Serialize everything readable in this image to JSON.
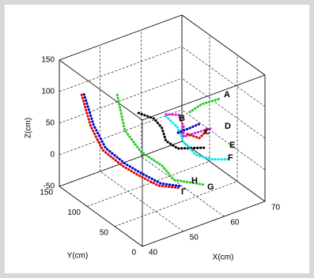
{
  "chart_data": {
    "type": "line3d",
    "xlabel": "X(cm)",
    "ylabel": "Y(cm)",
    "zlabel": "Z(cm)",
    "xlim": [
      40,
      70
    ],
    "ylim": [
      0,
      150
    ],
    "zlim": [
      -50,
      150
    ],
    "xticks": [
      40,
      50,
      60,
      70
    ],
    "yticks": [
      0,
      50,
      100,
      150
    ],
    "zticks": [
      -50,
      0,
      50,
      100,
      150
    ],
    "grid": true,
    "annotations": [
      "A",
      "B",
      "C",
      "D",
      "E",
      "F",
      "G",
      "H",
      "Γ"
    ],
    "series": [
      {
        "color": "#dd0000",
        "x": [
          41.4,
          41.6,
          42.5,
          45.3,
          47.2,
          50.0,
          53.5
        ],
        "y": [
          120,
          105,
          90,
          75,
          60,
          45,
          35
        ],
        "z": [
          110.7,
          69.7,
          39.5,
          17.4,
          7.4,
          -6,
          -11.5
        ]
      },
      {
        "color": "#0000cc",
        "x": [
          42.0,
          42.3,
          43.2,
          46.0,
          47.9,
          50.6,
          54.0
        ],
        "y": [
          120,
          105,
          90,
          75,
          60,
          45,
          35
        ],
        "z": [
          110,
          70,
          41,
          19,
          9,
          -4,
          -10
        ]
      },
      {
        "color": "#22cc22",
        "x": [
          47.4,
          47.9,
          49.8,
          53.0,
          53.8,
          59.2
        ],
        "y": [
          100,
          90,
          75,
          60,
          45,
          30
        ],
        "z": [
          109,
          58,
          29,
          8.6,
          -6,
          -17
        ]
      },
      {
        "color": "#000000",
        "x": [
          49.9,
          53.7,
          55.6,
          56.6,
          59.5,
          65.9
        ],
        "y": [
          80,
          80,
          80,
          80,
          80,
          80
        ],
        "z": [
          87,
          69,
          50,
          27,
          8,
          -6
        ]
      },
      {
        "color": "#00e5ee",
        "x": [
          53.9,
          56.8,
          58.2,
          61.3,
          65.2,
          69.4
        ],
        "y": [
          60,
          60,
          60,
          60,
          60,
          60
        ],
        "z": [
          85,
          60,
          34,
          6,
          -10,
          -20
        ]
      },
      {
        "color": "#e020e0",
        "x": [
          51.2,
          54.3,
          55.5,
          55.5,
          58.6,
          62.5
        ],
        "y": [
          40,
          40,
          40,
          40,
          40,
          40
        ],
        "z": [
          107,
          99,
          78,
          61.5,
          60.5,
          58.6
        ]
      },
      {
        "color": "#dd0000",
        "x": [
          55.1,
          58.0,
          59.9
        ],
        "y": [
          30,
          30,
          30
        ],
        "z": [
          73,
          59.5,
          67.5
        ]
      },
      {
        "color": "#0000cc",
        "x": [
          55.5,
          58.4,
          60.7
        ],
        "y": [
          50,
          50,
          50
        ],
        "z": [
          61.5,
          62,
          63
        ]
      },
      {
        "color": "#22cc22",
        "x": [
          54.3,
          57.2,
          61.7
        ],
        "y": [
          20,
          20,
          20
        ],
        "z": [
          116,
          121.5,
          119.6
        ]
      }
    ]
  }
}
